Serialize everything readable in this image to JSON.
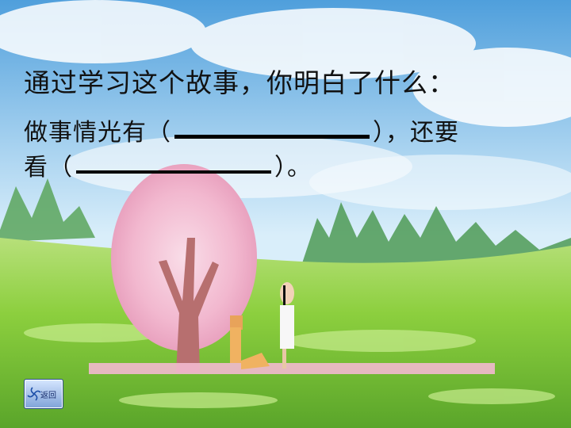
{
  "slide": {
    "title": "通过学习这个故事，你明白了什么：",
    "question_line1_start": "做事情光有（",
    "question_line1_end": "），还要",
    "question_line2_start": "看（",
    "question_line2_end": "）。"
  },
  "nav": {
    "back_label": "返回"
  },
  "colors": {
    "sky_top": "#5ba6e0",
    "grass": "#7cc63a",
    "blossom": "#f6c4d8"
  }
}
